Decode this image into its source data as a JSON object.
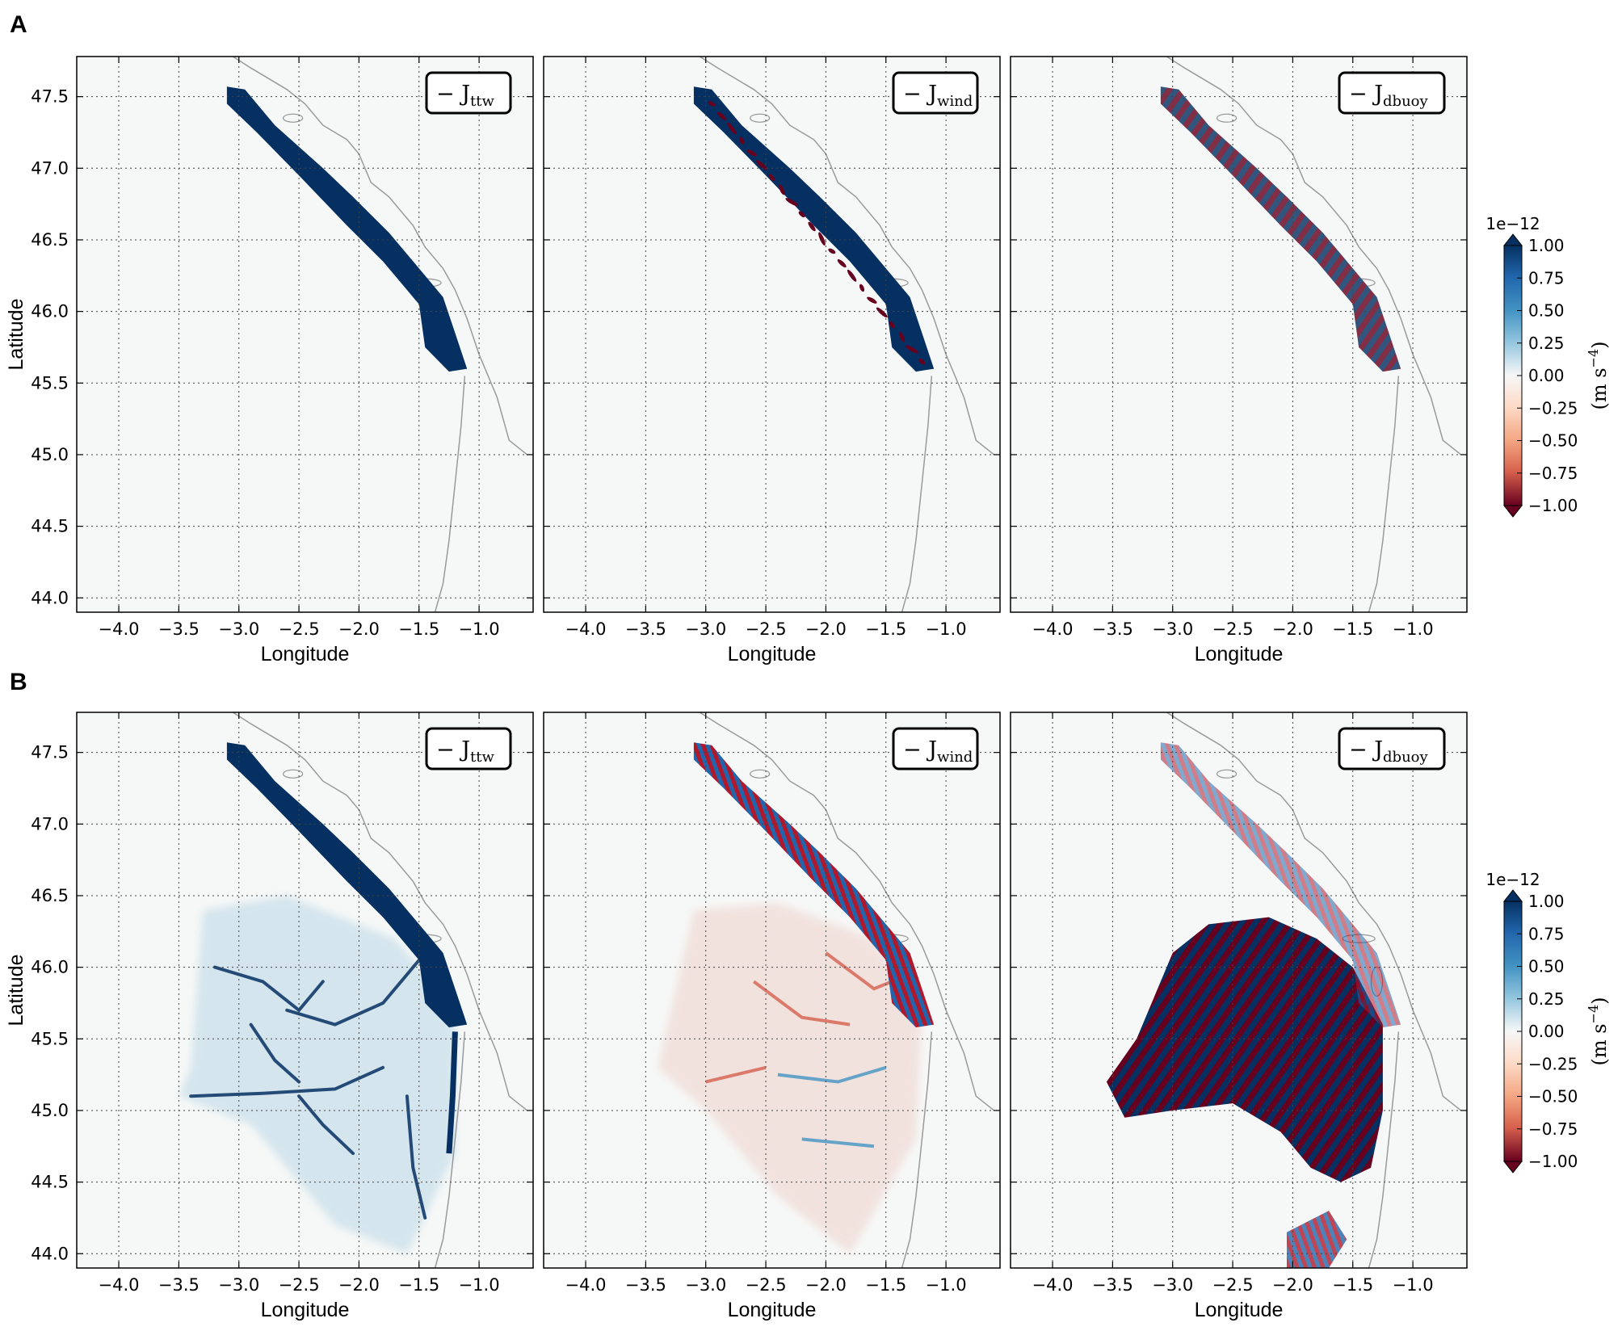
{
  "colors": {
    "positive": "#053061",
    "positive_light": "#4393c3",
    "negative": "#67001f",
    "negative_light": "#d6604d",
    "land": "#f6f8f7",
    "coast": "#9a9a9a",
    "grid": "#444444"
  },
  "panel_letters": [
    "A",
    "B"
  ],
  "chart_data": [
    {
      "type": "heatmap",
      "row": "A",
      "panel": 1,
      "legend": "− J_ttw",
      "legend_main": "− J",
      "legend_sub": "ttw",
      "xlabel": "Longitude",
      "ylabel": "Latitude",
      "xlim": [
        -4.35,
        -0.55
      ],
      "ylim": [
        43.9,
        47.78
      ],
      "xticks": [
        "−4.0",
        "−3.5",
        "−3.0",
        "−2.5",
        "−2.0",
        "−1.5",
        "−1.0"
      ],
      "yticks": [
        "44.0",
        "44.5",
        "45.0",
        "45.5",
        "46.0",
        "46.5",
        "47.0",
        "47.5"
      ],
      "grid": true,
      "field": "coastal band, strongly positive"
    },
    {
      "type": "heatmap",
      "row": "A",
      "panel": 2,
      "legend": "− J_wind",
      "legend_main": "− J",
      "legend_sub": "wind",
      "xlabel": "Longitude",
      "ylabel": "",
      "xlim": [
        -4.35,
        -0.55
      ],
      "ylim": [
        43.9,
        47.78
      ],
      "xticks": [
        "−4.0",
        "−3.5",
        "−3.0",
        "−2.5",
        "−2.0",
        "−1.5",
        "−1.0"
      ],
      "grid": true,
      "field": "coastal band, mostly positive with negative streaks"
    },
    {
      "type": "heatmap",
      "row": "A",
      "panel": 3,
      "legend": "− J_dbuoy",
      "legend_main": "− J",
      "legend_sub": "dbuoy",
      "xlabel": "Longitude",
      "ylabel": "",
      "xlim": [
        -4.35,
        -0.55
      ],
      "ylim": [
        43.9,
        47.78
      ],
      "xticks": [
        "−4.0",
        "−3.5",
        "−3.0",
        "−2.5",
        "−2.0",
        "−1.5",
        "−1.0"
      ],
      "grid": true,
      "field": "coastal band, mixed positive and negative"
    },
    {
      "type": "heatmap",
      "row": "B",
      "panel": 1,
      "legend": "− J_ttw",
      "legend_main": "− J",
      "legend_sub": "ttw",
      "xlabel": "Longitude",
      "ylabel": "Latitude",
      "xlim": [
        -4.35,
        -0.55
      ],
      "ylim": [
        43.9,
        47.78
      ],
      "xticks": [
        "−4.0",
        "−3.5",
        "−3.0",
        "−2.5",
        "−2.0",
        "−1.5",
        "−1.0"
      ],
      "yticks": [
        "44.0",
        "44.5",
        "45.0",
        "45.5",
        "46.0",
        "46.5",
        "47.0",
        "47.5"
      ],
      "grid": true,
      "field": "coastal band plus offshore positive filaments"
    },
    {
      "type": "heatmap",
      "row": "B",
      "panel": 2,
      "legend": "− J_wind",
      "legend_main": "− J",
      "legend_sub": "wind",
      "xlabel": "Longitude",
      "ylabel": "",
      "xlim": [
        -4.35,
        -0.55
      ],
      "ylim": [
        43.9,
        47.78
      ],
      "xticks": [
        "−4.0",
        "−3.5",
        "−3.0",
        "−2.5",
        "−2.0",
        "−1.5",
        "−1.0"
      ],
      "grid": true,
      "field": "weak mixed offshore filaments, strong coastal band"
    },
    {
      "type": "heatmap",
      "row": "B",
      "panel": 3,
      "legend": "− J_dbuoy",
      "legend_main": "− J",
      "legend_sub": "dbuoy",
      "xlabel": "Longitude",
      "ylabel": "",
      "xlim": [
        -4.35,
        -0.55
      ],
      "ylim": [
        43.9,
        47.78
      ],
      "xticks": [
        "−4.0",
        "−3.5",
        "−3.0",
        "−2.5",
        "−2.0",
        "−1.5",
        "−1.0"
      ],
      "grid": true,
      "field": "large offshore patch of intense mixed positive and negative values"
    }
  ],
  "colorbar": {
    "exponent": "1e−12",
    "ticks": [
      "1.00",
      "0.75",
      "0.50",
      "0.25",
      "0.00",
      "−0.25",
      "−0.50",
      "−0.75",
      "−1.00"
    ],
    "range": [
      -1.0,
      1.0
    ],
    "label": "(m s",
    "label_sup": "−4",
    "label_end": ")",
    "extend": "both"
  }
}
